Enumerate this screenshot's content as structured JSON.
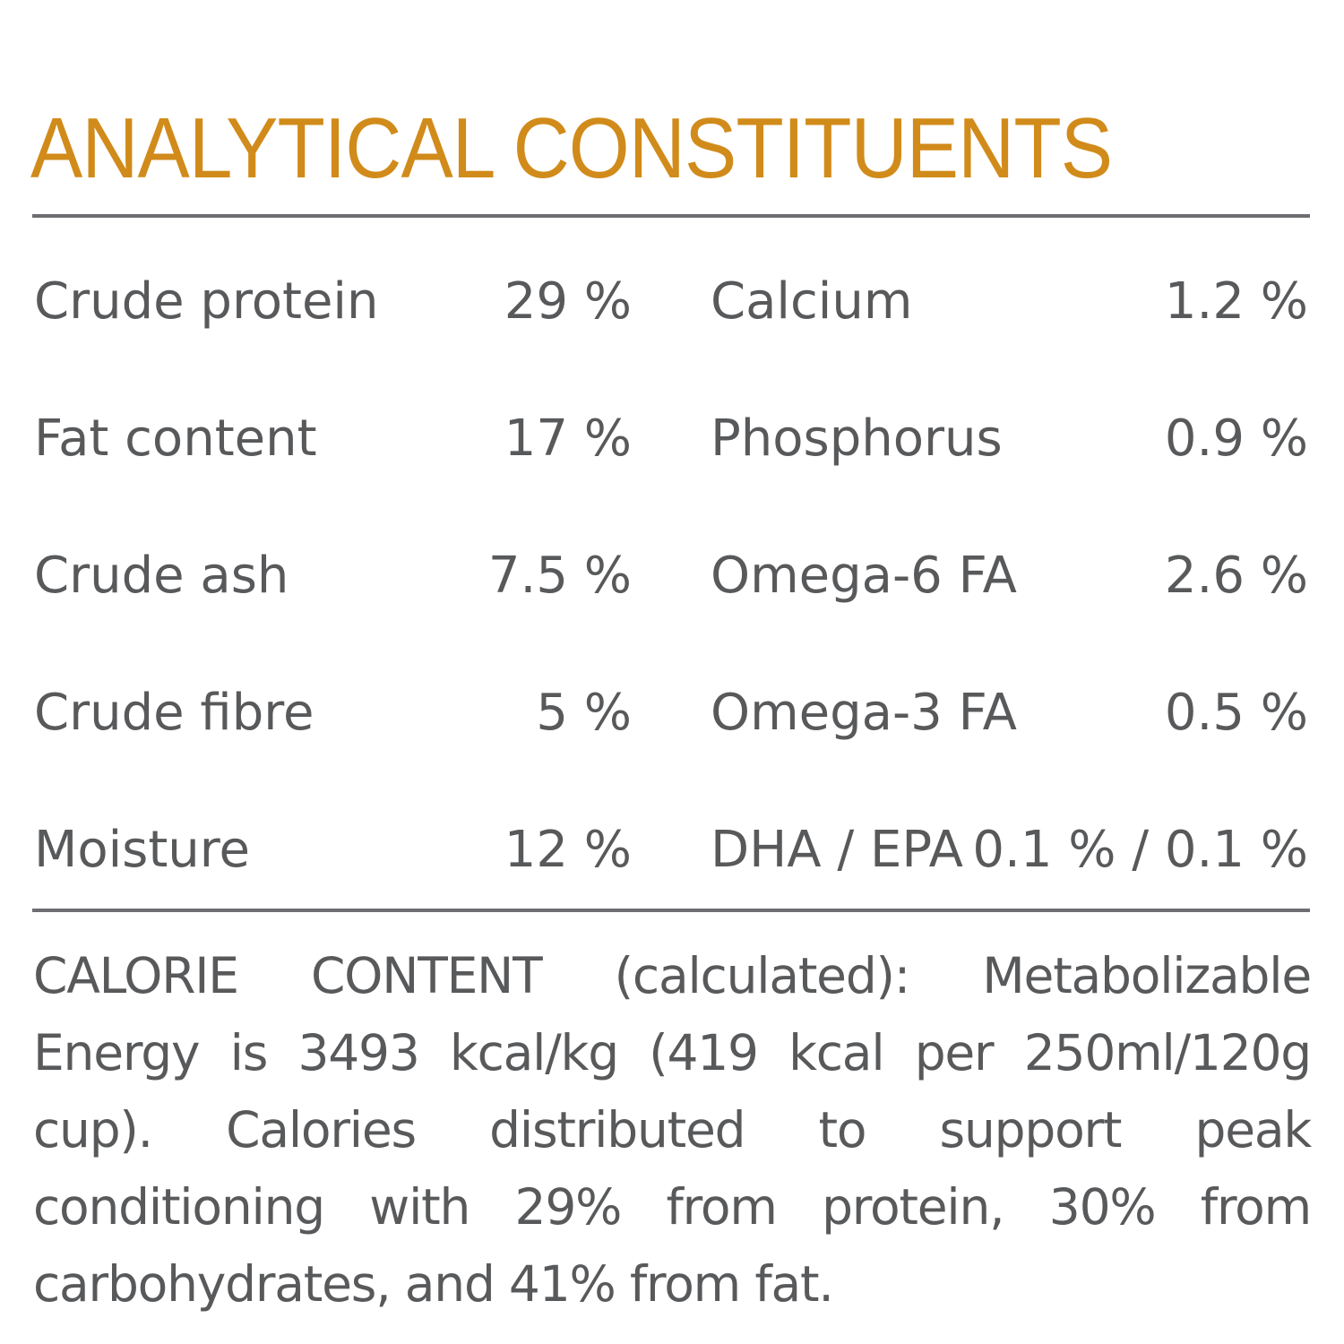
{
  "title": "ANALYTICAL CONSTITUENTS",
  "colors": {
    "title": "#d18b1a",
    "text": "#58595b",
    "rule": "#6d6e71"
  },
  "rows": [
    {
      "left_label": "Crude protein",
      "left_value": "29 %",
      "right_label": "Calcium",
      "right_value": "1.2 %"
    },
    {
      "left_label": "Fat content",
      "left_value": "17 %",
      "right_label": "Phosphorus",
      "right_value": "0.9 %"
    },
    {
      "left_label": "Crude ash",
      "left_value": "7.5 %",
      "right_label": "Omega-6 FA",
      "right_value": "2.6 %"
    },
    {
      "left_label": "Crude fibre",
      "left_value": "5 %",
      "right_label": "Omega-3 FA",
      "right_value": "0.5 %"
    },
    {
      "left_label": "Moisture",
      "left_value": "12 %",
      "right_label": "DHA / EPA",
      "right_value": "0.1 % / 0.1 %"
    }
  ],
  "calorie_content": "CALORIE CONTENT (calculated): Metabolizable Energy is 3493 kcal/kg (419 kcal per 250ml/120g cup). Calories distributed to support peak conditioning with 29% from protein, 30% from carbohydrates, and 41% from fat."
}
